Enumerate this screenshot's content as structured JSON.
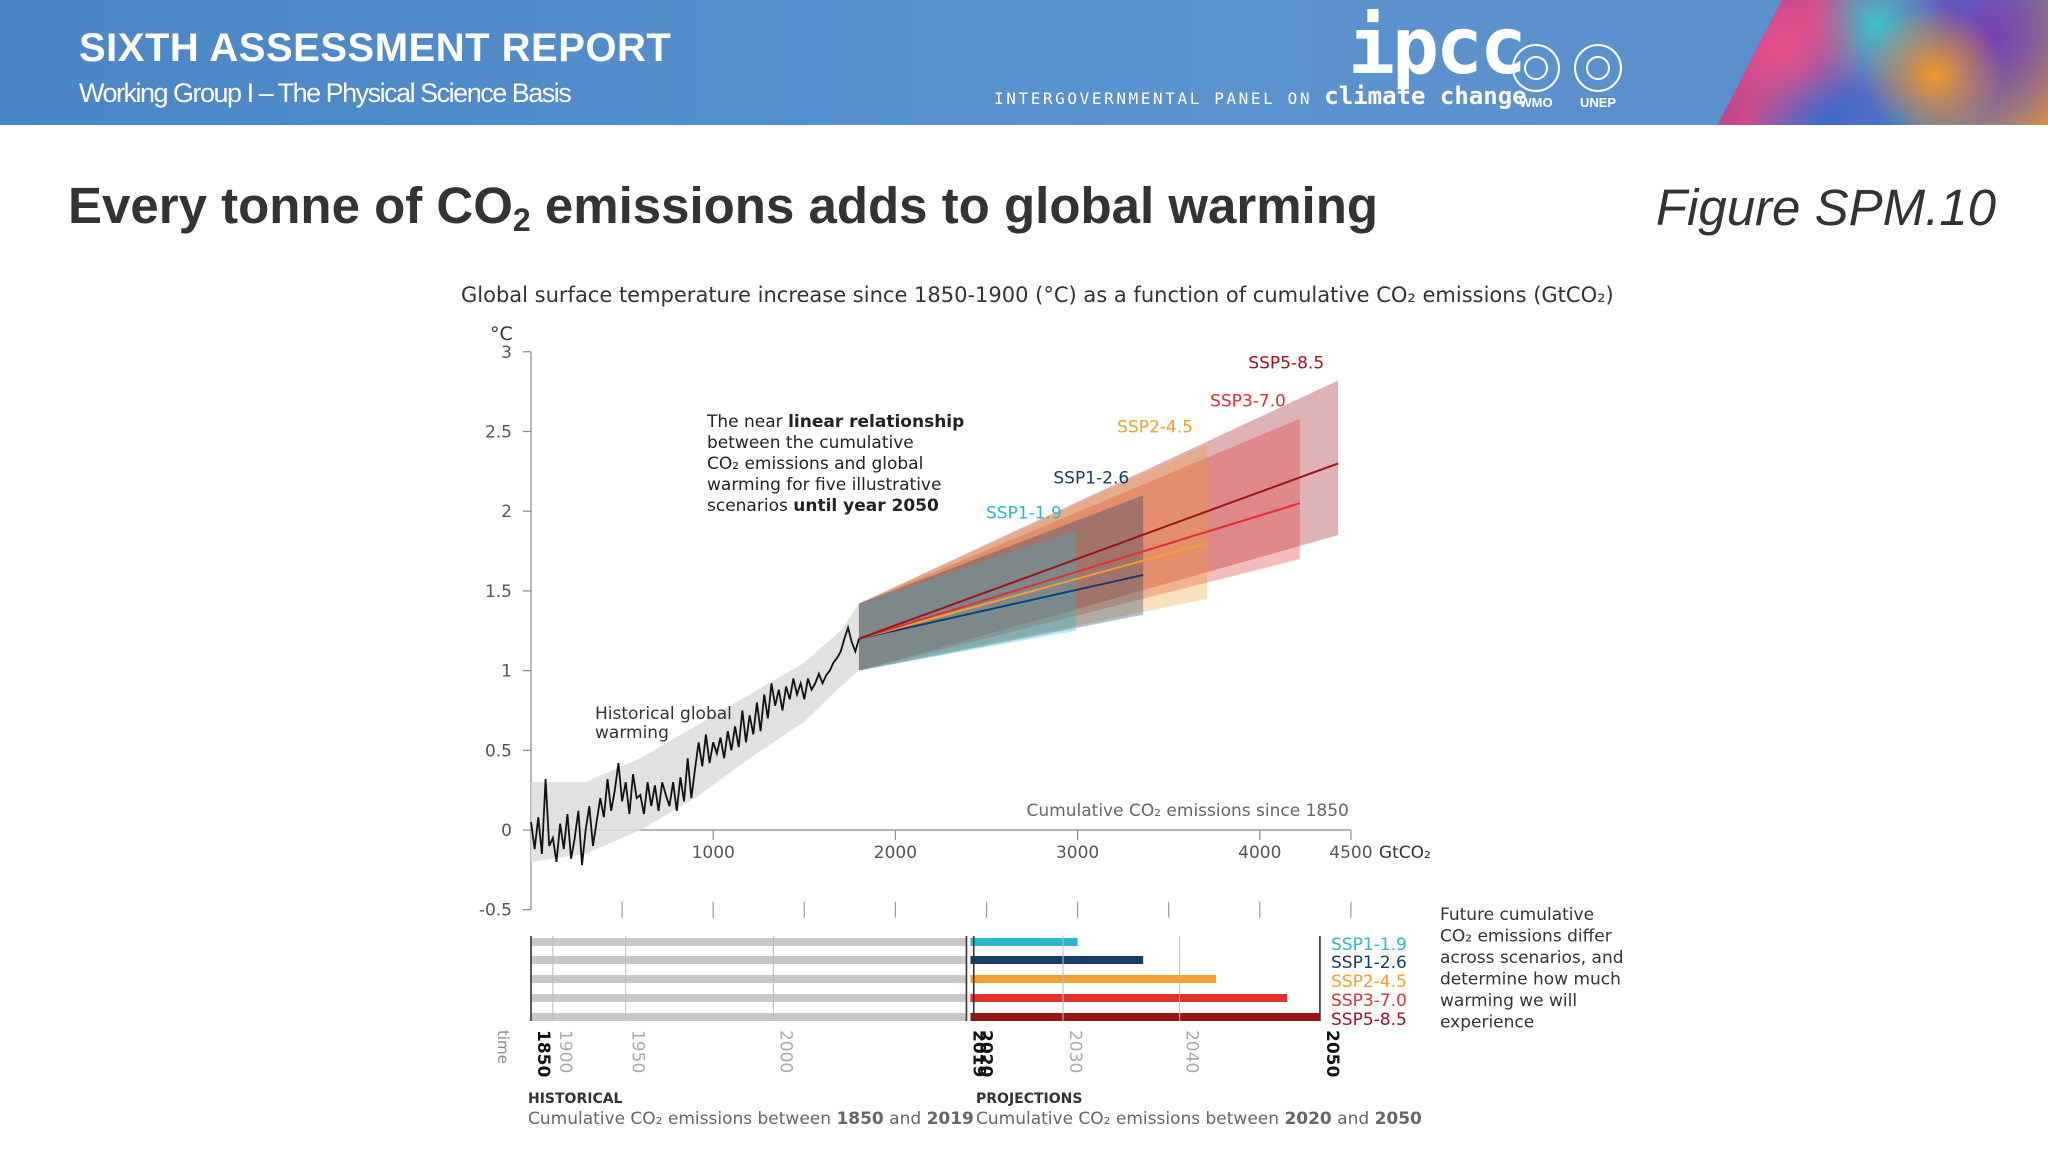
{
  "banner": {
    "title": "SIXTH ASSESSMENT REPORT",
    "subtitle": "Working Group I – The Physical Science Basis",
    "ipcc_logo": "ipcc",
    "ipcc_line_prefix": "INTERGOVERNMENTAL PANEL ON ",
    "ipcc_line_emph": "climate change",
    "org_left": "WMO",
    "org_right": "UNEP"
  },
  "slide": {
    "headline_pre": "Every tonne of CO",
    "headline_sub": "2",
    "headline_post": " emissions adds to global warming",
    "figure_ref": "Figure SPM.10"
  },
  "colors": {
    "ssp119": "#2fb4cc",
    "ssp126": "#173c66",
    "ssp245": "#f0a030",
    "ssp370": "#e03030",
    "ssp585": "#9a1418",
    "historical": "#c8c8c8"
  },
  "chart_data": {
    "type": "line",
    "title": "Global surface temperature increase since 1850-1900 (°C) as a function of cumulative CO₂ emissions (GtCO₂)",
    "ylabel": "°C",
    "xlabel": "Cumulative CO₂ emissions since 1850",
    "x_unit": "GtCO₂",
    "xlim": [
      0,
      4500
    ],
    "ylim": [
      -0.5,
      3
    ],
    "x_ticks": [
      1000,
      2000,
      3000,
      4000,
      4500
    ],
    "y_ticks": [
      3,
      2.5,
      2,
      1.5,
      1,
      0.5,
      0,
      -0.5
    ],
    "y_tick_labels": [
      "3",
      "2.5",
      "2",
      "1.5",
      "1",
      "0.5",
      "0",
      "-0.5"
    ],
    "annotation_linear": [
      [
        "The near ",
        "linear relationship",
        ""
      ],
      [
        "between the cumulative",
        "",
        ""
      ],
      [
        "CO₂ emissions and global",
        "",
        ""
      ],
      [
        "warming for five illustrative",
        "",
        ""
      ],
      [
        "scenarios ",
        "until year 2050",
        ""
      ]
    ],
    "annotation_historical": [
      "Historical global",
      "warming"
    ],
    "historical": [
      [
        0,
        0.05
      ],
      [
        20,
        -0.12
      ],
      [
        40,
        0.08
      ],
      [
        60,
        -0.15
      ],
      [
        80,
        0.32
      ],
      [
        100,
        -0.1
      ],
      [
        120,
        -0.05
      ],
      [
        140,
        -0.2
      ],
      [
        160,
        0.04
      ],
      [
        180,
        -0.12
      ],
      [
        200,
        0.1
      ],
      [
        220,
        -0.18
      ],
      [
        240,
        -0.05
      ],
      [
        260,
        0.12
      ],
      [
        280,
        -0.22
      ],
      [
        300,
        0.0
      ],
      [
        320,
        0.15
      ],
      [
        340,
        -0.1
      ],
      [
        360,
        0.05
      ],
      [
        380,
        0.2
      ],
      [
        400,
        0.08
      ],
      [
        420,
        0.32
      ],
      [
        440,
        0.12
      ],
      [
        460,
        0.25
      ],
      [
        480,
        0.42
      ],
      [
        500,
        0.18
      ],
      [
        520,
        0.3
      ],
      [
        540,
        0.1
      ],
      [
        560,
        0.35
      ],
      [
        580,
        0.2
      ],
      [
        600,
        0.22
      ],
      [
        620,
        0.1
      ],
      [
        640,
        0.3
      ],
      [
        660,
        0.15
      ],
      [
        680,
        0.28
      ],
      [
        700,
        0.12
      ],
      [
        720,
        0.3
      ],
      [
        740,
        0.22
      ],
      [
        760,
        0.15
      ],
      [
        780,
        0.3
      ],
      [
        800,
        0.12
      ],
      [
        820,
        0.33
      ],
      [
        840,
        0.18
      ],
      [
        860,
        0.45
      ],
      [
        880,
        0.2
      ],
      [
        900,
        0.38
      ],
      [
        920,
        0.55
      ],
      [
        940,
        0.4
      ],
      [
        960,
        0.6
      ],
      [
        980,
        0.42
      ],
      [
        1000,
        0.55
      ],
      [
        1020,
        0.48
      ],
      [
        1040,
        0.58
      ],
      [
        1060,
        0.45
      ],
      [
        1080,
        0.62
      ],
      [
        1100,
        0.5
      ],
      [
        1120,
        0.65
      ],
      [
        1140,
        0.52
      ],
      [
        1160,
        0.75
      ],
      [
        1180,
        0.55
      ],
      [
        1200,
        0.72
      ],
      [
        1220,
        0.6
      ],
      [
        1240,
        0.8
      ],
      [
        1260,
        0.62
      ],
      [
        1280,
        0.85
      ],
      [
        1300,
        0.7
      ],
      [
        1320,
        0.92
      ],
      [
        1340,
        0.78
      ],
      [
        1360,
        0.88
      ],
      [
        1380,
        0.75
      ],
      [
        1400,
        0.9
      ],
      [
        1420,
        0.82
      ],
      [
        1440,
        0.95
      ],
      [
        1460,
        0.85
      ],
      [
        1480,
        0.92
      ],
      [
        1500,
        0.82
      ],
      [
        1520,
        0.95
      ],
      [
        1540,
        0.88
      ],
      [
        1560,
        0.92
      ],
      [
        1580,
        0.98
      ],
      [
        1600,
        0.92
      ],
      [
        1620,
        0.97
      ],
      [
        1640,
        1.0
      ],
      [
        1660,
        1.05
      ],
      [
        1680,
        1.08
      ],
      [
        1700,
        1.12
      ],
      [
        1720,
        1.2
      ],
      [
        1740,
        1.27
      ],
      [
        1760,
        1.18
      ],
      [
        1780,
        1.12
      ],
      [
        1800,
        1.2
      ]
    ],
    "historical_band": [
      [
        0,
        -0.2,
        0.3
      ],
      [
        300,
        -0.15,
        0.3
      ],
      [
        600,
        0.0,
        0.45
      ],
      [
        900,
        0.2,
        0.65
      ],
      [
        1200,
        0.45,
        0.85
      ],
      [
        1500,
        0.68,
        1.05
      ],
      [
        1700,
        0.9,
        1.25
      ],
      [
        1800,
        1.0,
        1.42
      ]
    ],
    "series": [
      {
        "name": "SSP1-1.9",
        "color_key": "ssp119",
        "x_end": 2990,
        "y_mid": 1.5,
        "y_lo": 1.25,
        "y_hi": 1.88
      },
      {
        "name": "SSP1-2.6",
        "color_key": "ssp126",
        "x_end": 3360,
        "y_mid": 1.6,
        "y_lo": 1.35,
        "y_hi": 2.1
      },
      {
        "name": "SSP2-4.5",
        "color_key": "ssp245",
        "x_end": 3710,
        "y_mid": 1.8,
        "y_lo": 1.45,
        "y_hi": 2.42
      },
      {
        "name": "SSP3-7.0",
        "color_key": "ssp370",
        "x_end": 4220,
        "y_mid": 2.05,
        "y_lo": 1.7,
        "y_hi": 2.58
      },
      {
        "name": "SSP5-8.5",
        "color_key": "ssp585",
        "x_end": 4430,
        "y_mid": 2.3,
        "y_lo": 1.85,
        "y_hi": 2.82
      }
    ],
    "projection_start": {
      "x": 1800,
      "y": 1.2,
      "y_lo": 1.0,
      "y_hi": 1.42
    },
    "timeline": {
      "time_label": "time",
      "years": [
        {
          "label": "1850",
          "x": 0,
          "bold": true
        },
        {
          "label": "1900",
          "x": 120,
          "bold": false
        },
        {
          "label": "1950",
          "x": 520,
          "bold": false
        },
        {
          "label": "2000",
          "x": 1330,
          "bold": false
        },
        {
          "label": "2019",
          "x": 2390,
          "bold": true
        },
        {
          "label": "2020",
          "x": 2430,
          "bold": true
        },
        {
          "label": "2030",
          "x": 2920,
          "bold": false
        },
        {
          "label": "2040",
          "x": 3560,
          "bold": false
        },
        {
          "label": "2050",
          "x": 4330,
          "bold": true
        }
      ],
      "hist_end": 2390,
      "bars": [
        {
          "name": "SSP1-1.9",
          "color_key": "ssp119",
          "end": 3000
        },
        {
          "name": "SSP1-2.6",
          "color_key": "ssp126",
          "end": 3360
        },
        {
          "name": "SSP2-4.5",
          "color_key": "ssp245",
          "end": 3760
        },
        {
          "name": "SSP3-7.0",
          "color_key": "ssp370",
          "end": 4150
        },
        {
          "name": "SSP5-8.5",
          "color_key": "ssp585",
          "end": 4330
        }
      ],
      "future_note": [
        "Future cumulative",
        "CO₂ emissions differ",
        "across scenarios, and",
        "determine how much",
        "warming we will",
        "experience"
      ],
      "historical_heading": "HISTORICAL",
      "historical_caption": [
        "Cumulative CO₂ emissions between ",
        "1850",
        " and ",
        "2019"
      ],
      "projections_heading": "PROJECTIONS",
      "projections_caption": [
        "Cumulative CO₂ emissions between ",
        "2020",
        " and ",
        "2050"
      ]
    }
  }
}
